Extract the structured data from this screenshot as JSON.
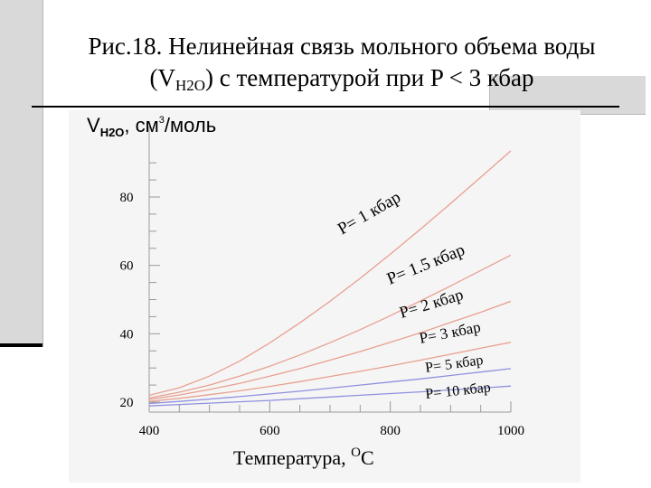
{
  "slide": {
    "title_line1": "Рис.18. Нелинейная связь мольного объема воды",
    "title_line2_open": "(V",
    "title_line2_sub": "H2O",
    "title_line2_rest": ") с температурой при P < 3 кбар"
  },
  "chart_data": {
    "type": "line",
    "ylabel_main": "V",
    "ylabel_sub": "H2O",
    "ylabel_rest": ", см",
    "ylabel_sup": "3",
    "ylabel_end": "/моль",
    "xlabel_main": "Температура, ",
    "xlabel_sup": "O",
    "xlabel_end": "C",
    "xlim": [
      400,
      1000
    ],
    "ylim": [
      20,
      80
    ],
    "xticks": [
      400,
      600,
      800,
      1000
    ],
    "xtick_labels": [
      "400",
      "600",
      "800",
      "1000"
    ],
    "yticks": [
      20,
      40,
      60,
      80
    ],
    "ytick_labels": [
      "20",
      "40",
      "60",
      "80"
    ],
    "series": [
      {
        "name": "P= 1 кбар",
        "color": "#e8a090",
        "x": [
          400,
          450,
          500,
          550,
          600,
          650,
          700,
          750,
          800,
          850,
          900,
          950,
          1000
        ],
        "y": [
          22.0,
          24.2,
          27.6,
          32.0,
          37.3,
          43.2,
          49.5,
          56.2,
          63.3,
          70.6,
          78.1,
          85.8,
          93.5
        ]
      },
      {
        "name": "P= 1.5 кбар",
        "color": "#e8a090",
        "x": [
          400,
          450,
          500,
          550,
          600,
          650,
          700,
          750,
          800,
          850,
          900,
          950,
          1000
        ],
        "y": [
          21.2,
          22.9,
          25.0,
          27.6,
          30.5,
          33.8,
          37.4,
          41.2,
          45.3,
          49.6,
          54.0,
          58.5,
          63.0
        ]
      },
      {
        "name": "P= 2 кбар",
        "color": "#e8a090",
        "x": [
          400,
          450,
          500,
          550,
          600,
          650,
          700,
          750,
          800,
          850,
          900,
          950,
          1000
        ],
        "y": [
          20.8,
          22.1,
          23.7,
          25.5,
          27.6,
          29.8,
          32.3,
          34.8,
          37.5,
          40.3,
          43.3,
          46.3,
          49.5
        ]
      },
      {
        "name": "P= 3 кбар",
        "color": "#e8a090",
        "x": [
          400,
          450,
          500,
          550,
          600,
          650,
          700,
          750,
          800,
          850,
          900,
          950,
          1000
        ],
        "y": [
          20.2,
          21.1,
          22.2,
          23.3,
          24.6,
          26.0,
          27.5,
          29.0,
          30.6,
          32.3,
          34.0,
          35.8,
          37.5
        ]
      },
      {
        "name": "P= 5 кбар",
        "color": "#9090e0",
        "x": [
          400,
          450,
          500,
          550,
          600,
          650,
          700,
          750,
          800,
          850,
          900,
          950,
          1000
        ],
        "y": [
          19.6,
          20.2,
          20.9,
          21.6,
          22.4,
          23.2,
          24.1,
          25.0,
          25.9,
          26.8,
          27.8,
          28.8,
          29.8
        ]
      },
      {
        "name": "P= 10 кбар",
        "color": "#9090e0",
        "x": [
          400,
          450,
          500,
          550,
          600,
          650,
          700,
          750,
          800,
          850,
          900,
          950,
          1000
        ],
        "y": [
          18.9,
          19.3,
          19.7,
          20.1,
          20.5,
          21.0,
          21.5,
          22.0,
          22.5,
          23.0,
          23.6,
          24.1,
          24.7
        ]
      }
    ],
    "grid": false,
    "legend": "inline labels"
  }
}
